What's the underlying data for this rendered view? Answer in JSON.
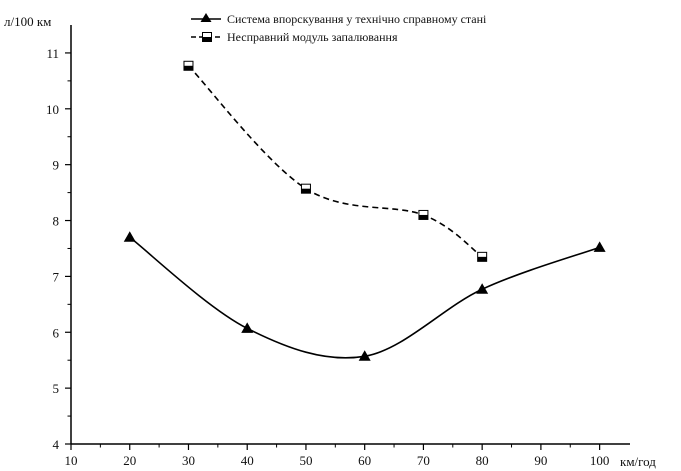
{
  "chart_data": {
    "type": "scatter",
    "title": "",
    "ylabel": "л/100 км",
    "xlabel": "км/год",
    "xlim": [
      10,
      105
    ],
    "ylim": [
      4,
      11.5
    ],
    "x_ticks": [
      10,
      20,
      30,
      40,
      50,
      60,
      70,
      80,
      90,
      100
    ],
    "y_ticks": [
      4,
      5,
      6,
      7,
      8,
      9,
      10,
      11
    ],
    "grid": false,
    "legend_position": "top-center",
    "series": [
      {
        "name": "Система впорскування у технічно справному стані",
        "marker": "triangle",
        "line_style": "solid",
        "color": "#000000",
        "x": [
          20,
          40,
          60,
          80,
          100
        ],
        "y": [
          7.7,
          6.07,
          5.57,
          6.77,
          7.52
        ]
      },
      {
        "name": "Несправний модуль запалювання",
        "marker": "half-filled-square",
        "line_style": "dashed",
        "color": "#000000",
        "x": [
          30,
          50,
          70,
          80
        ],
        "y": [
          10.77,
          8.57,
          8.1,
          7.35
        ]
      }
    ]
  }
}
